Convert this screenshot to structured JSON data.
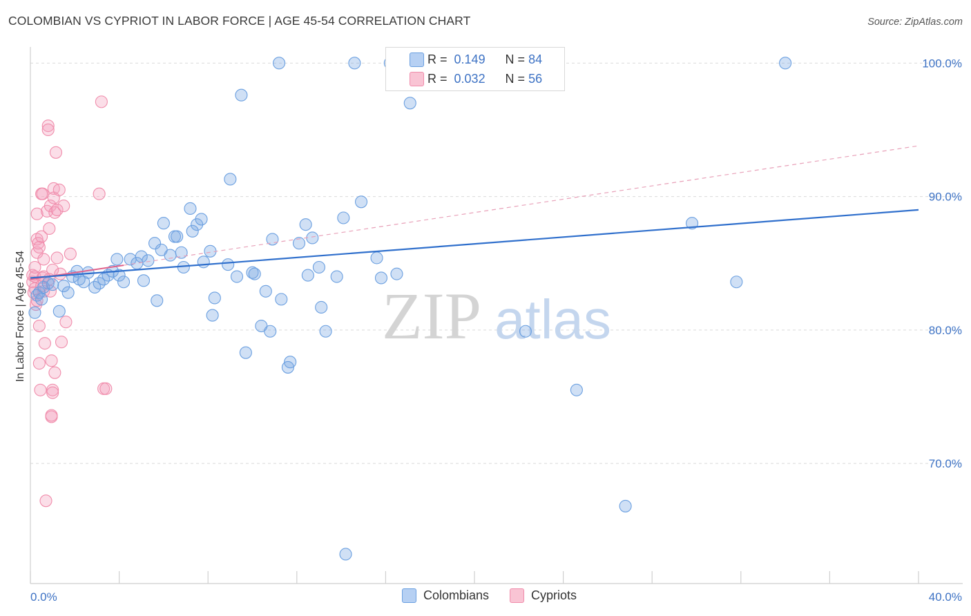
{
  "title": "COLOMBIAN VS CYPRIOT IN LABOR FORCE | AGE 45-54 CORRELATION CHART",
  "source": "Source: ZipAtlas.com",
  "watermark": {
    "zip": "ZIP",
    "atlas": "atlas"
  },
  "legend": {
    "rows": [
      {
        "r_label": "R =",
        "r_value": "0.149",
        "n_label": "N =",
        "n_value": "84"
      },
      {
        "r_label": "R =",
        "r_value": "0.032",
        "n_label": "N =",
        "n_value": "56"
      }
    ],
    "bottom": [
      "Colombians",
      "Cypriots"
    ]
  },
  "chart_data": {
    "type": "scatter",
    "title": "COLOMBIAN VS CYPRIOT IN LABOR FORCE | AGE 45-54 CORRELATION CHART",
    "xlabel": "",
    "ylabel": "In Labor Force | Age 45-54",
    "xlim": [
      0,
      40
    ],
    "ylim": [
      61,
      101
    ],
    "x_tick_labels": [
      "0.0%",
      "40.0%"
    ],
    "y_ticks": [
      70,
      80,
      90,
      100
    ],
    "y_tick_labels": [
      "70.0%",
      "80.0%",
      "90.0%",
      "100.0%"
    ],
    "grid": "horizontal dashed",
    "legend_position": "top-center",
    "colors": {
      "colombians": "#6a9fe0",
      "cypriots": "#f08cab",
      "blue_line": "#2f6fcc",
      "pink_line": "#e0608a"
    },
    "series": [
      {
        "name": "Colombians",
        "r": 0.149,
        "n": 84,
        "trend": {
          "x": [
            0,
            40
          ],
          "y": [
            83.9,
            89.0
          ],
          "style": "solid"
        },
        "points": [
          [
            0.3,
            82.6
          ],
          [
            0.4,
            82.8
          ],
          [
            0.6,
            83.2
          ],
          [
            0.8,
            83.5
          ],
          [
            1.3,
            81.4
          ],
          [
            1.5,
            83.3
          ],
          [
            1.7,
            82.8
          ],
          [
            1.9,
            84.0
          ],
          [
            2.1,
            84.4
          ],
          [
            2.4,
            83.6
          ],
          [
            2.6,
            84.3
          ],
          [
            2.9,
            83.2
          ],
          [
            3.1,
            83.5
          ],
          [
            3.3,
            83.8
          ],
          [
            3.5,
            84.1
          ],
          [
            3.7,
            84.4
          ],
          [
            4.0,
            84.1
          ],
          [
            4.2,
            83.6
          ],
          [
            3.9,
            85.3
          ],
          [
            4.5,
            85.3
          ],
          [
            4.8,
            85.0
          ],
          [
            5.0,
            85.5
          ],
          [
            5.1,
            83.7
          ],
          [
            5.3,
            85.2
          ],
          [
            5.6,
            86.5
          ],
          [
            5.7,
            82.2
          ],
          [
            5.9,
            86.0
          ],
          [
            6.0,
            88.0
          ],
          [
            6.3,
            85.6
          ],
          [
            6.5,
            87.0
          ],
          [
            6.6,
            87.0
          ],
          [
            6.8,
            85.8
          ],
          [
            6.9,
            84.7
          ],
          [
            7.2,
            89.1
          ],
          [
            7.3,
            87.4
          ],
          [
            7.5,
            87.9
          ],
          [
            7.7,
            88.3
          ],
          [
            7.8,
            85.1
          ],
          [
            8.1,
            85.9
          ],
          [
            8.2,
            81.1
          ],
          [
            8.3,
            82.4
          ],
          [
            8.9,
            84.9
          ],
          [
            9.0,
            91.3
          ],
          [
            9.3,
            84.0
          ],
          [
            9.5,
            97.6
          ],
          [
            9.7,
            78.3
          ],
          [
            10.0,
            84.3
          ],
          [
            10.1,
            84.2
          ],
          [
            10.4,
            80.3
          ],
          [
            10.6,
            82.9
          ],
          [
            10.8,
            79.9
          ],
          [
            10.9,
            86.8
          ],
          [
            11.2,
            100.0
          ],
          [
            11.3,
            82.3
          ],
          [
            11.6,
            77.2
          ],
          [
            11.7,
            77.6
          ],
          [
            12.1,
            86.5
          ],
          [
            12.4,
            87.9
          ],
          [
            12.5,
            84.1
          ],
          [
            12.7,
            86.9
          ],
          [
            13.0,
            84.7
          ],
          [
            13.1,
            81.7
          ],
          [
            13.3,
            79.9
          ],
          [
            13.8,
            84.0
          ],
          [
            14.1,
            88.4
          ],
          [
            14.6,
            100.0
          ],
          [
            14.2,
            63.2
          ],
          [
            14.9,
            89.6
          ],
          [
            15.6,
            85.4
          ],
          [
            15.8,
            83.9
          ],
          [
            16.2,
            100.0
          ],
          [
            16.5,
            84.2
          ],
          [
            17.1,
            97.0
          ],
          [
            18.3,
            100.0
          ],
          [
            22.3,
            79.9
          ],
          [
            24.6,
            75.5
          ],
          [
            26.8,
            66.8
          ],
          [
            29.8,
            88.0
          ],
          [
            31.8,
            83.6
          ],
          [
            34.0,
            100.0
          ],
          [
            0.2,
            81.3
          ],
          [
            0.5,
            82.3
          ],
          [
            1.0,
            83.4
          ],
          [
            2.2,
            83.8
          ]
        ]
      },
      {
        "name": "Cypriots",
        "r": 0.032,
        "n": 56,
        "trend": {
          "x": [
            0,
            40
          ],
          "y": [
            83.8,
            93.8
          ],
          "style": "dashed",
          "solid_until_x": 4.2
        },
        "points": [
          [
            0.1,
            84.1
          ],
          [
            0.1,
            83.6
          ],
          [
            0.15,
            82.8
          ],
          [
            0.2,
            84.0
          ],
          [
            0.2,
            83.1
          ],
          [
            0.25,
            81.9
          ],
          [
            0.3,
            86.8
          ],
          [
            0.3,
            85.8
          ],
          [
            0.3,
            88.7
          ],
          [
            0.35,
            86.5
          ],
          [
            0.4,
            80.3
          ],
          [
            0.4,
            77.5
          ],
          [
            0.45,
            75.5
          ],
          [
            0.5,
            90.2
          ],
          [
            0.5,
            87.0
          ],
          [
            0.55,
            90.2
          ],
          [
            0.55,
            83.9
          ],
          [
            0.6,
            85.3
          ],
          [
            0.6,
            82.9
          ],
          [
            0.65,
            79.0
          ],
          [
            0.7,
            67.2
          ],
          [
            0.75,
            88.9
          ],
          [
            0.8,
            95.3
          ],
          [
            0.8,
            95.0
          ],
          [
            0.85,
            87.6
          ],
          [
            0.85,
            83.8
          ],
          [
            0.9,
            89.3
          ],
          [
            0.9,
            82.9
          ],
          [
            0.95,
            77.7
          ],
          [
            0.95,
            73.5
          ],
          [
            0.95,
            73.6
          ],
          [
            1.0,
            75.5
          ],
          [
            1.0,
            75.3
          ],
          [
            1.0,
            84.5
          ],
          [
            1.05,
            90.6
          ],
          [
            1.05,
            89.9
          ],
          [
            1.1,
            76.8
          ],
          [
            1.1,
            88.8
          ],
          [
            1.15,
            93.3
          ],
          [
            1.2,
            89.0
          ],
          [
            1.2,
            85.4
          ],
          [
            1.3,
            90.5
          ],
          [
            1.35,
            84.2
          ],
          [
            1.4,
            79.1
          ],
          [
            1.5,
            89.3
          ],
          [
            1.6,
            80.6
          ],
          [
            1.8,
            85.7
          ],
          [
            3.1,
            90.2
          ],
          [
            3.2,
            97.1
          ],
          [
            3.3,
            75.6
          ],
          [
            3.4,
            75.6
          ],
          [
            0.2,
            84.7
          ],
          [
            0.3,
            82.2
          ],
          [
            0.4,
            86.2
          ],
          [
            0.5,
            83.3
          ],
          [
            0.6,
            84.0
          ]
        ]
      }
    ]
  }
}
